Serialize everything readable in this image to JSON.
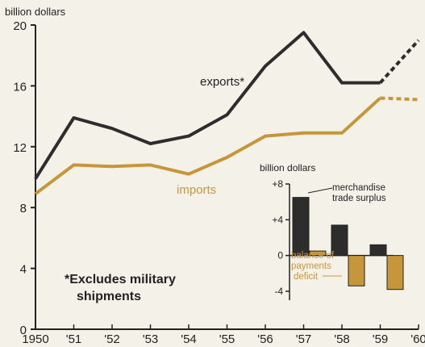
{
  "colors": {
    "exports": "#2d2d2d",
    "imports": "#c8963a",
    "axis": "#222222",
    "background": "#f4f1e8"
  },
  "chart_data": [
    {
      "type": "line",
      "ylabel": "billion dollars",
      "ylim": [
        0,
        20
      ],
      "yticks": [
        0,
        4,
        8,
        12,
        16,
        20
      ],
      "xlim": [
        1950,
        1960
      ],
      "xticks": [
        "1950",
        "'51",
        "'52",
        "'53",
        "'54",
        "'55",
        "'56",
        "'57",
        "'58",
        "'59",
        "'60"
      ],
      "series": [
        {
          "name": "exports*",
          "x": [
            1950,
            1951,
            1952,
            1953,
            1954,
            1955,
            1956,
            1957,
            1958,
            1959
          ],
          "values": [
            9.9,
            13.9,
            13.2,
            12.2,
            12.7,
            14.1,
            17.3,
            19.5,
            16.2,
            16.2
          ],
          "projected": {
            "x": [
              1959,
              1960
            ],
            "values": [
              16.2,
              19.0
            ]
          }
        },
        {
          "name": "imports",
          "x": [
            1950,
            1951,
            1952,
            1953,
            1954,
            1955,
            1956,
            1957,
            1958,
            1959
          ],
          "values": [
            8.9,
            10.8,
            10.7,
            10.8,
            10.2,
            11.3,
            12.7,
            12.9,
            12.9,
            15.2
          ],
          "projected": {
            "x": [
              1959,
              1960
            ],
            "values": [
              15.2,
              15.1
            ]
          }
        }
      ],
      "annotations": [
        "*Excludes military",
        "shipments"
      ]
    },
    {
      "type": "bar",
      "ylabel": "billion dollars",
      "ylim": [
        -5,
        8
      ],
      "yticks": [
        "+8",
        "+4",
        "0",
        "-4"
      ],
      "ytick_values": [
        8,
        4,
        0,
        -4
      ],
      "categories": [
        "1957",
        "1958",
        "1959"
      ],
      "series": [
        {
          "name": "merchandise trade surplus",
          "label_lines": [
            "merchandise",
            "trade surplus"
          ],
          "values": [
            6.5,
            3.4,
            1.2
          ]
        },
        {
          "name": "balance of payments deficit",
          "label_lines": [
            "balance of",
            "payments",
            "deficit"
          ],
          "values": [
            0.5,
            -3.4,
            -3.8
          ]
        }
      ]
    }
  ]
}
